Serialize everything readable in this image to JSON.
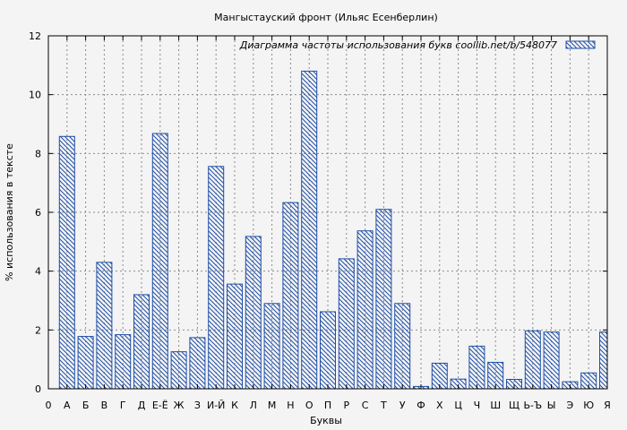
{
  "chart_data": {
    "type": "bar",
    "title": "Мангыстауский фронт (Ильяс Есенберлин)",
    "xlabel": "Буквы",
    "ylabel": "% использования в тексте",
    "ylim": [
      0,
      12
    ],
    "yticks": [
      0,
      2,
      4,
      6,
      8,
      10,
      12
    ],
    "grid": true,
    "legend_position": "top-right",
    "bar_color": "#1f4fa8",
    "categories": [
      "0",
      "А",
      "Б",
      "В",
      "Г",
      "Д",
      "Е-Ё",
      "Ж",
      "З",
      "И-Й",
      "К",
      "Л",
      "М",
      "Н",
      "О",
      "П",
      "Р",
      "С",
      "Т",
      "У",
      "Ф",
      "Х",
      "Ц",
      "Ч",
      "Ш",
      "Щ",
      "Ь-Ъ",
      "Ы",
      "Э",
      "Ю",
      "Я"
    ],
    "series": [
      {
        "name": "Диаграмма частоты использования букв  coollib.net/b/548077",
        "values": [
          0,
          8.58,
          1.78,
          4.3,
          1.84,
          3.2,
          8.68,
          1.26,
          1.74,
          7.56,
          3.56,
          5.18,
          2.9,
          6.33,
          10.8,
          2.62,
          4.42,
          5.37,
          6.1,
          2.9,
          0.08,
          0.87,
          0.33,
          1.45,
          0.9,
          0.32,
          1.97,
          1.93,
          0.24,
          0.54,
          1.93
        ]
      }
    ]
  }
}
